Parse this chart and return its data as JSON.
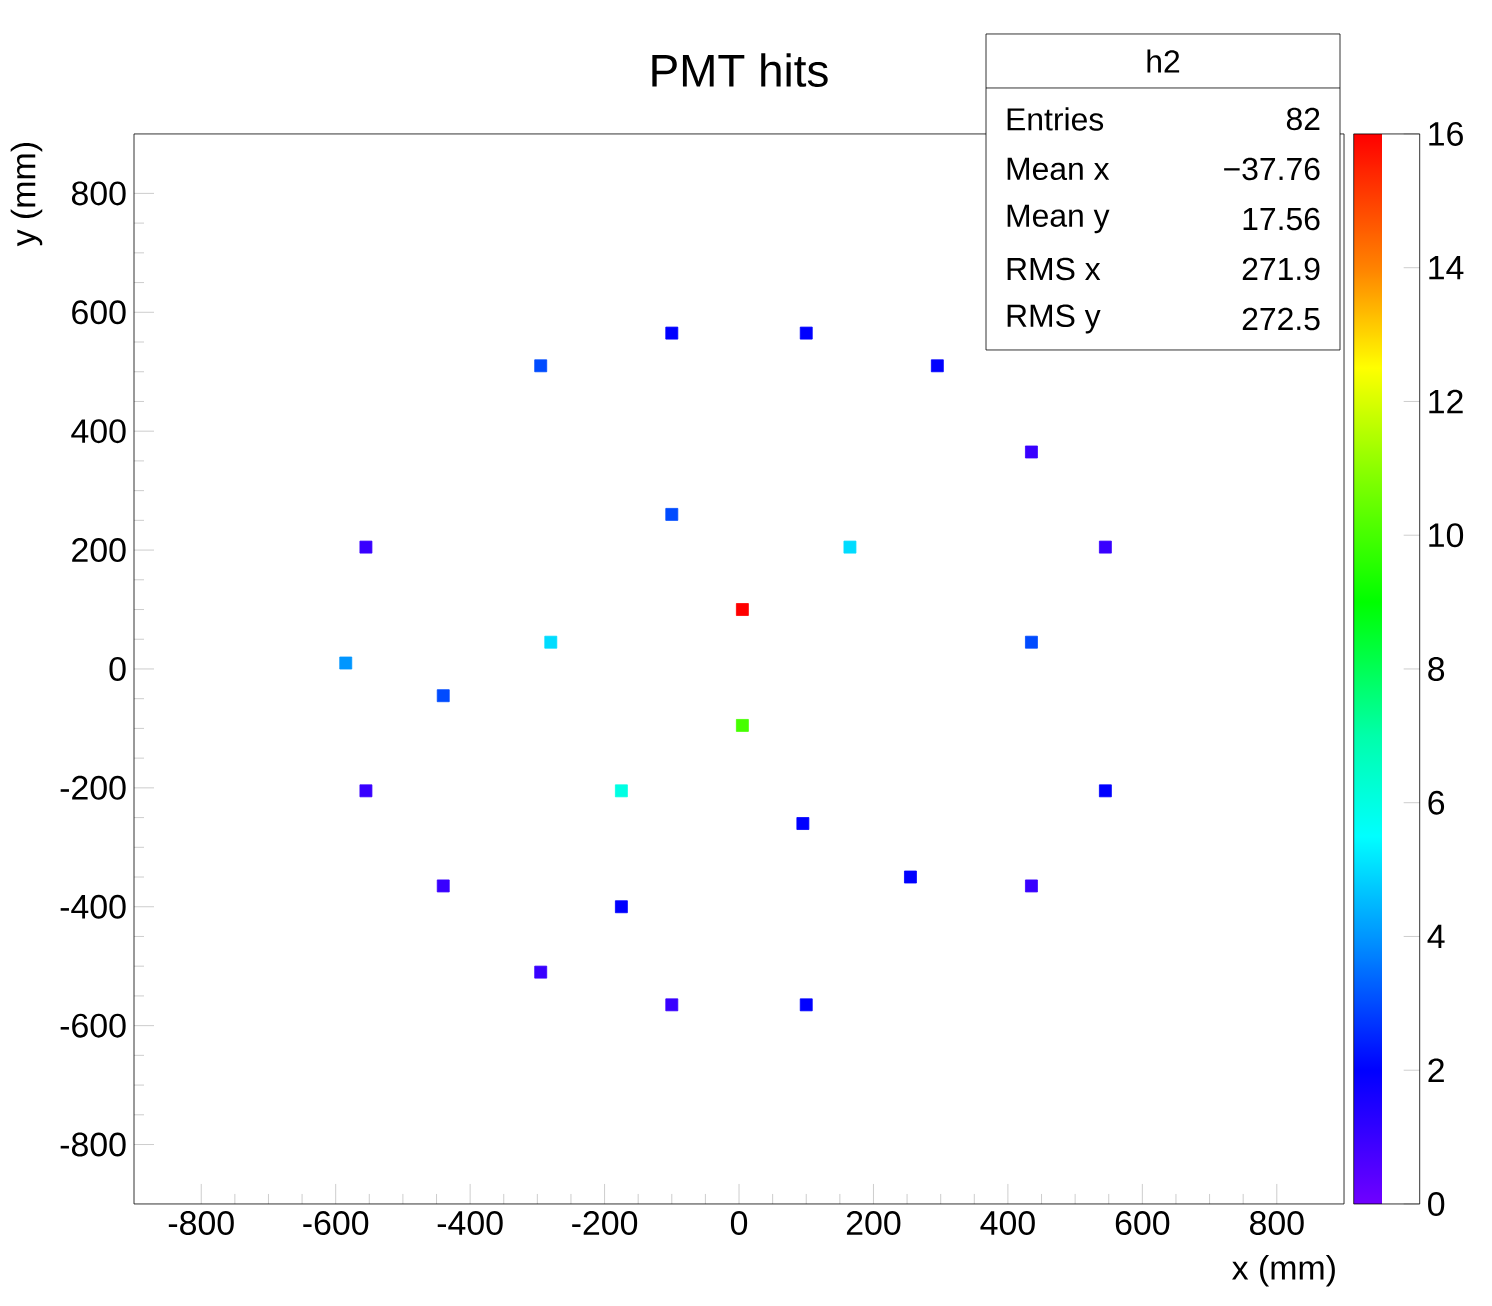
{
  "chart_data": {
    "type": "scatter",
    "title": "PMT hits",
    "xlabel": "x (mm)",
    "ylabel": "y (mm)",
    "x": [
      -100,
      100,
      -295,
      295,
      435,
      -100,
      -555,
      165,
      545,
      5,
      -280,
      435,
      -585,
      -440,
      5,
      -555,
      -175,
      545,
      95,
      255,
      -440,
      435,
      -175,
      -295,
      -100,
      100
    ],
    "values": [
      565,
      565,
      510,
      510,
      365,
      260,
      205,
      205,
      205,
      100,
      45,
      45,
      10,
      -45,
      -95,
      -205,
      -205,
      -205,
      -260,
      -350,
      -365,
      -365,
      -400,
      -510,
      -565,
      -565
    ],
    "cvalues": [
      2,
      2,
      3,
      2,
      1,
      3,
      1,
      5,
      1,
      16,
      5,
      3,
      4,
      3,
      10,
      1,
      6,
      2,
      2,
      2,
      1,
      1,
      2,
      1,
      1,
      2
    ],
    "marker": "square",
    "clim": [
      0,
      16
    ],
    "cticks": [
      0,
      2,
      4,
      6,
      8,
      10,
      12,
      14,
      16
    ],
    "xlim": [
      -900,
      900
    ],
    "ylim": [
      -900,
      900
    ],
    "xticks": [
      -800,
      -600,
      -400,
      -200,
      0,
      200,
      400,
      600,
      800
    ],
    "yticks": [
      -800,
      -600,
      -400,
      -200,
      0,
      200,
      400,
      600,
      800
    ],
    "annotations": [
      "h2",
      "Entries",
      "82",
      "Mean x",
      "−37.76",
      "Mean y",
      "17.56",
      "RMS x",
      "271.9",
      "RMS y",
      "272.5"
    ]
  }
}
